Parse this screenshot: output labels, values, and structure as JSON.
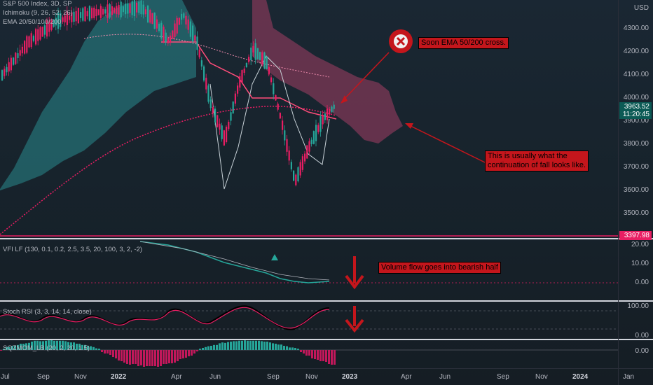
{
  "symbol_legend": {
    "title": "S&P 500 Index, 3D, SP",
    "ichimoku": "Ichimoku (9, 26, 52, 26)",
    "ema": "EMA 20/50/100/200"
  },
  "indicator_legends": {
    "vfi": "VFI LF (130, 0.1, 0.2, 2.5, 3.5, 20, 100, 3, 2, -2)",
    "stoch": "Stoch RSI (3, 3, 14, 14, close)",
    "sqz": "SQZMOM_LB (20, 2, 20, 1.5)"
  },
  "price_axis": {
    "currency": "USD",
    "ticks": [
      "4300.00",
      "4200.00",
      "4100.00",
      "4000.00",
      "3900.00",
      "3800.00",
      "3700.00",
      "3600.00",
      "3500.00"
    ],
    "current_price": "3963.52",
    "countdown": "11:20:45",
    "low_level": "3397.98"
  },
  "vfi_axis": {
    "ticks": [
      "20.00",
      "10.00",
      "0.00"
    ]
  },
  "stoch_axis": {
    "ticks": [
      "100.00",
      "0.00"
    ]
  },
  "sqz_axis": {
    "ticks": [
      "0.00"
    ]
  },
  "time_axis": {
    "labels": [
      "Jul",
      "Sep",
      "Nov",
      "2022",
      "Apr",
      "Jun",
      "Sep",
      "Nov",
      "2023",
      "Apr",
      "Jun",
      "Sep",
      "Nov",
      "2024",
      "Jan"
    ]
  },
  "annotations": {
    "ema_cross": "Soon EMA 50/200 cross.",
    "fall_line1": "This is usually what the",
    "fall_line2": "continuation of fall looks like.",
    "volume_flow": "Volume flow goes into bearish half"
  },
  "colors": {
    "up": "#26a69a",
    "down": "#e91e63",
    "note_red": "#c4161c",
    "cloud_bull": "#2a8a8e",
    "cloud_bear": "#8e3a5c"
  }
}
